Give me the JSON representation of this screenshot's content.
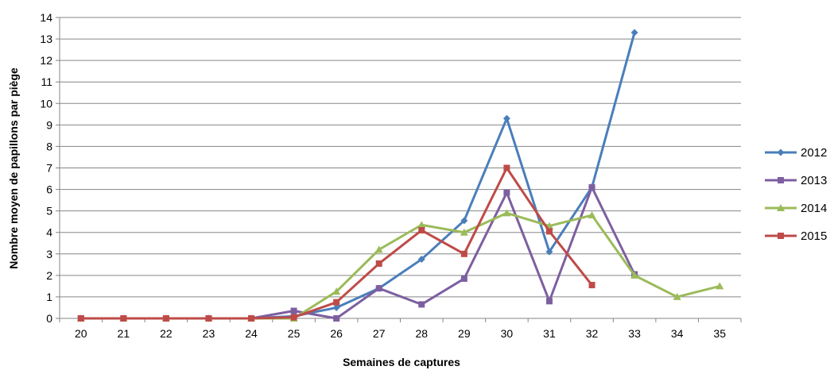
{
  "chart_data": {
    "type": "line",
    "title": "",
    "xlabel": "Semaines de captures",
    "ylabel": "Nombre moyen de papillons par piège",
    "categories": [
      "20",
      "21",
      "22",
      "23",
      "24",
      "25",
      "26",
      "27",
      "28",
      "29",
      "30",
      "31",
      "32",
      "33",
      "34",
      "35"
    ],
    "ylim": [
      0,
      14
    ],
    "yticks": [
      0,
      1,
      2,
      3,
      4,
      5,
      6,
      7,
      8,
      9,
      10,
      11,
      12,
      13,
      14
    ],
    "grid": true,
    "legend_position": "right",
    "series": [
      {
        "name": "2012",
        "color": "#4A7EBB",
        "marker": "diamond",
        "values": [
          0,
          0,
          0,
          0,
          0,
          0.1,
          0.5,
          1.4,
          2.75,
          4.55,
          9.3,
          3.1,
          6.1,
          13.3,
          null,
          null
        ]
      },
      {
        "name": "2013",
        "color": "#7D5FA0",
        "marker": "square",
        "values": [
          0,
          0,
          0,
          0,
          0,
          0.35,
          0,
          1.4,
          0.65,
          1.85,
          5.85,
          0.8,
          6.1,
          2.05,
          null,
          null
        ]
      },
      {
        "name": "2014",
        "color": "#9BBB59",
        "marker": "triangle",
        "values": [
          0,
          0,
          0,
          0,
          0,
          0,
          1.25,
          3.2,
          4.35,
          4.0,
          4.9,
          4.3,
          4.8,
          2.0,
          1.0,
          1.5
        ]
      },
      {
        "name": "2015",
        "color": "#BE4B48",
        "marker": "square",
        "values": [
          0,
          0,
          0,
          0,
          0,
          0.05,
          0.75,
          2.55,
          4.1,
          3.0,
          7.0,
          4.05,
          1.55,
          null,
          null,
          null
        ]
      }
    ]
  }
}
